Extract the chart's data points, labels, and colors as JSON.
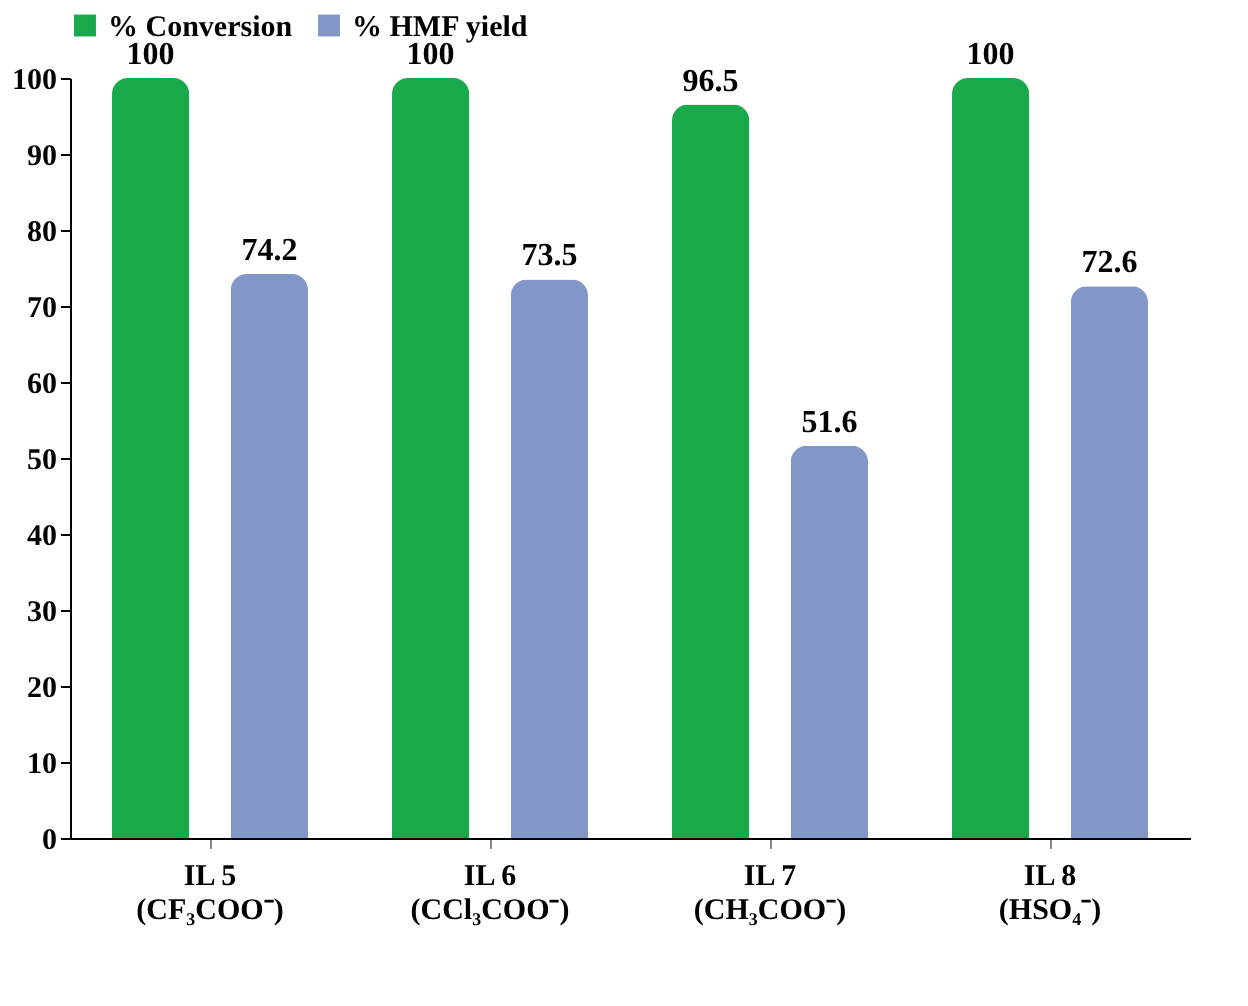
{
  "chart_data": {
    "type": "bar",
    "categories": [
      "IL 5\n(CF₃COO⁻)",
      "IL 6\n(CCl₃COO⁻)",
      "IL 7\n(CH₃COO⁻)",
      "IL 8\n(HSO₄⁻)"
    ],
    "series": [
      {
        "name": "% Conversion",
        "color": "#19a84a",
        "values": [
          100,
          100,
          96.5,
          100
        ]
      },
      {
        "name": "% HMF yield",
        "color": "#8296c8",
        "values": [
          74.2,
          73.5,
          51.6,
          72.6
        ]
      }
    ],
    "ylim": [
      0,
      100
    ],
    "yticks": [
      0,
      10,
      20,
      30,
      40,
      50,
      60,
      70,
      80,
      90,
      100
    ],
    "grid": false,
    "legend": "top",
    "data_labels": true
  }
}
